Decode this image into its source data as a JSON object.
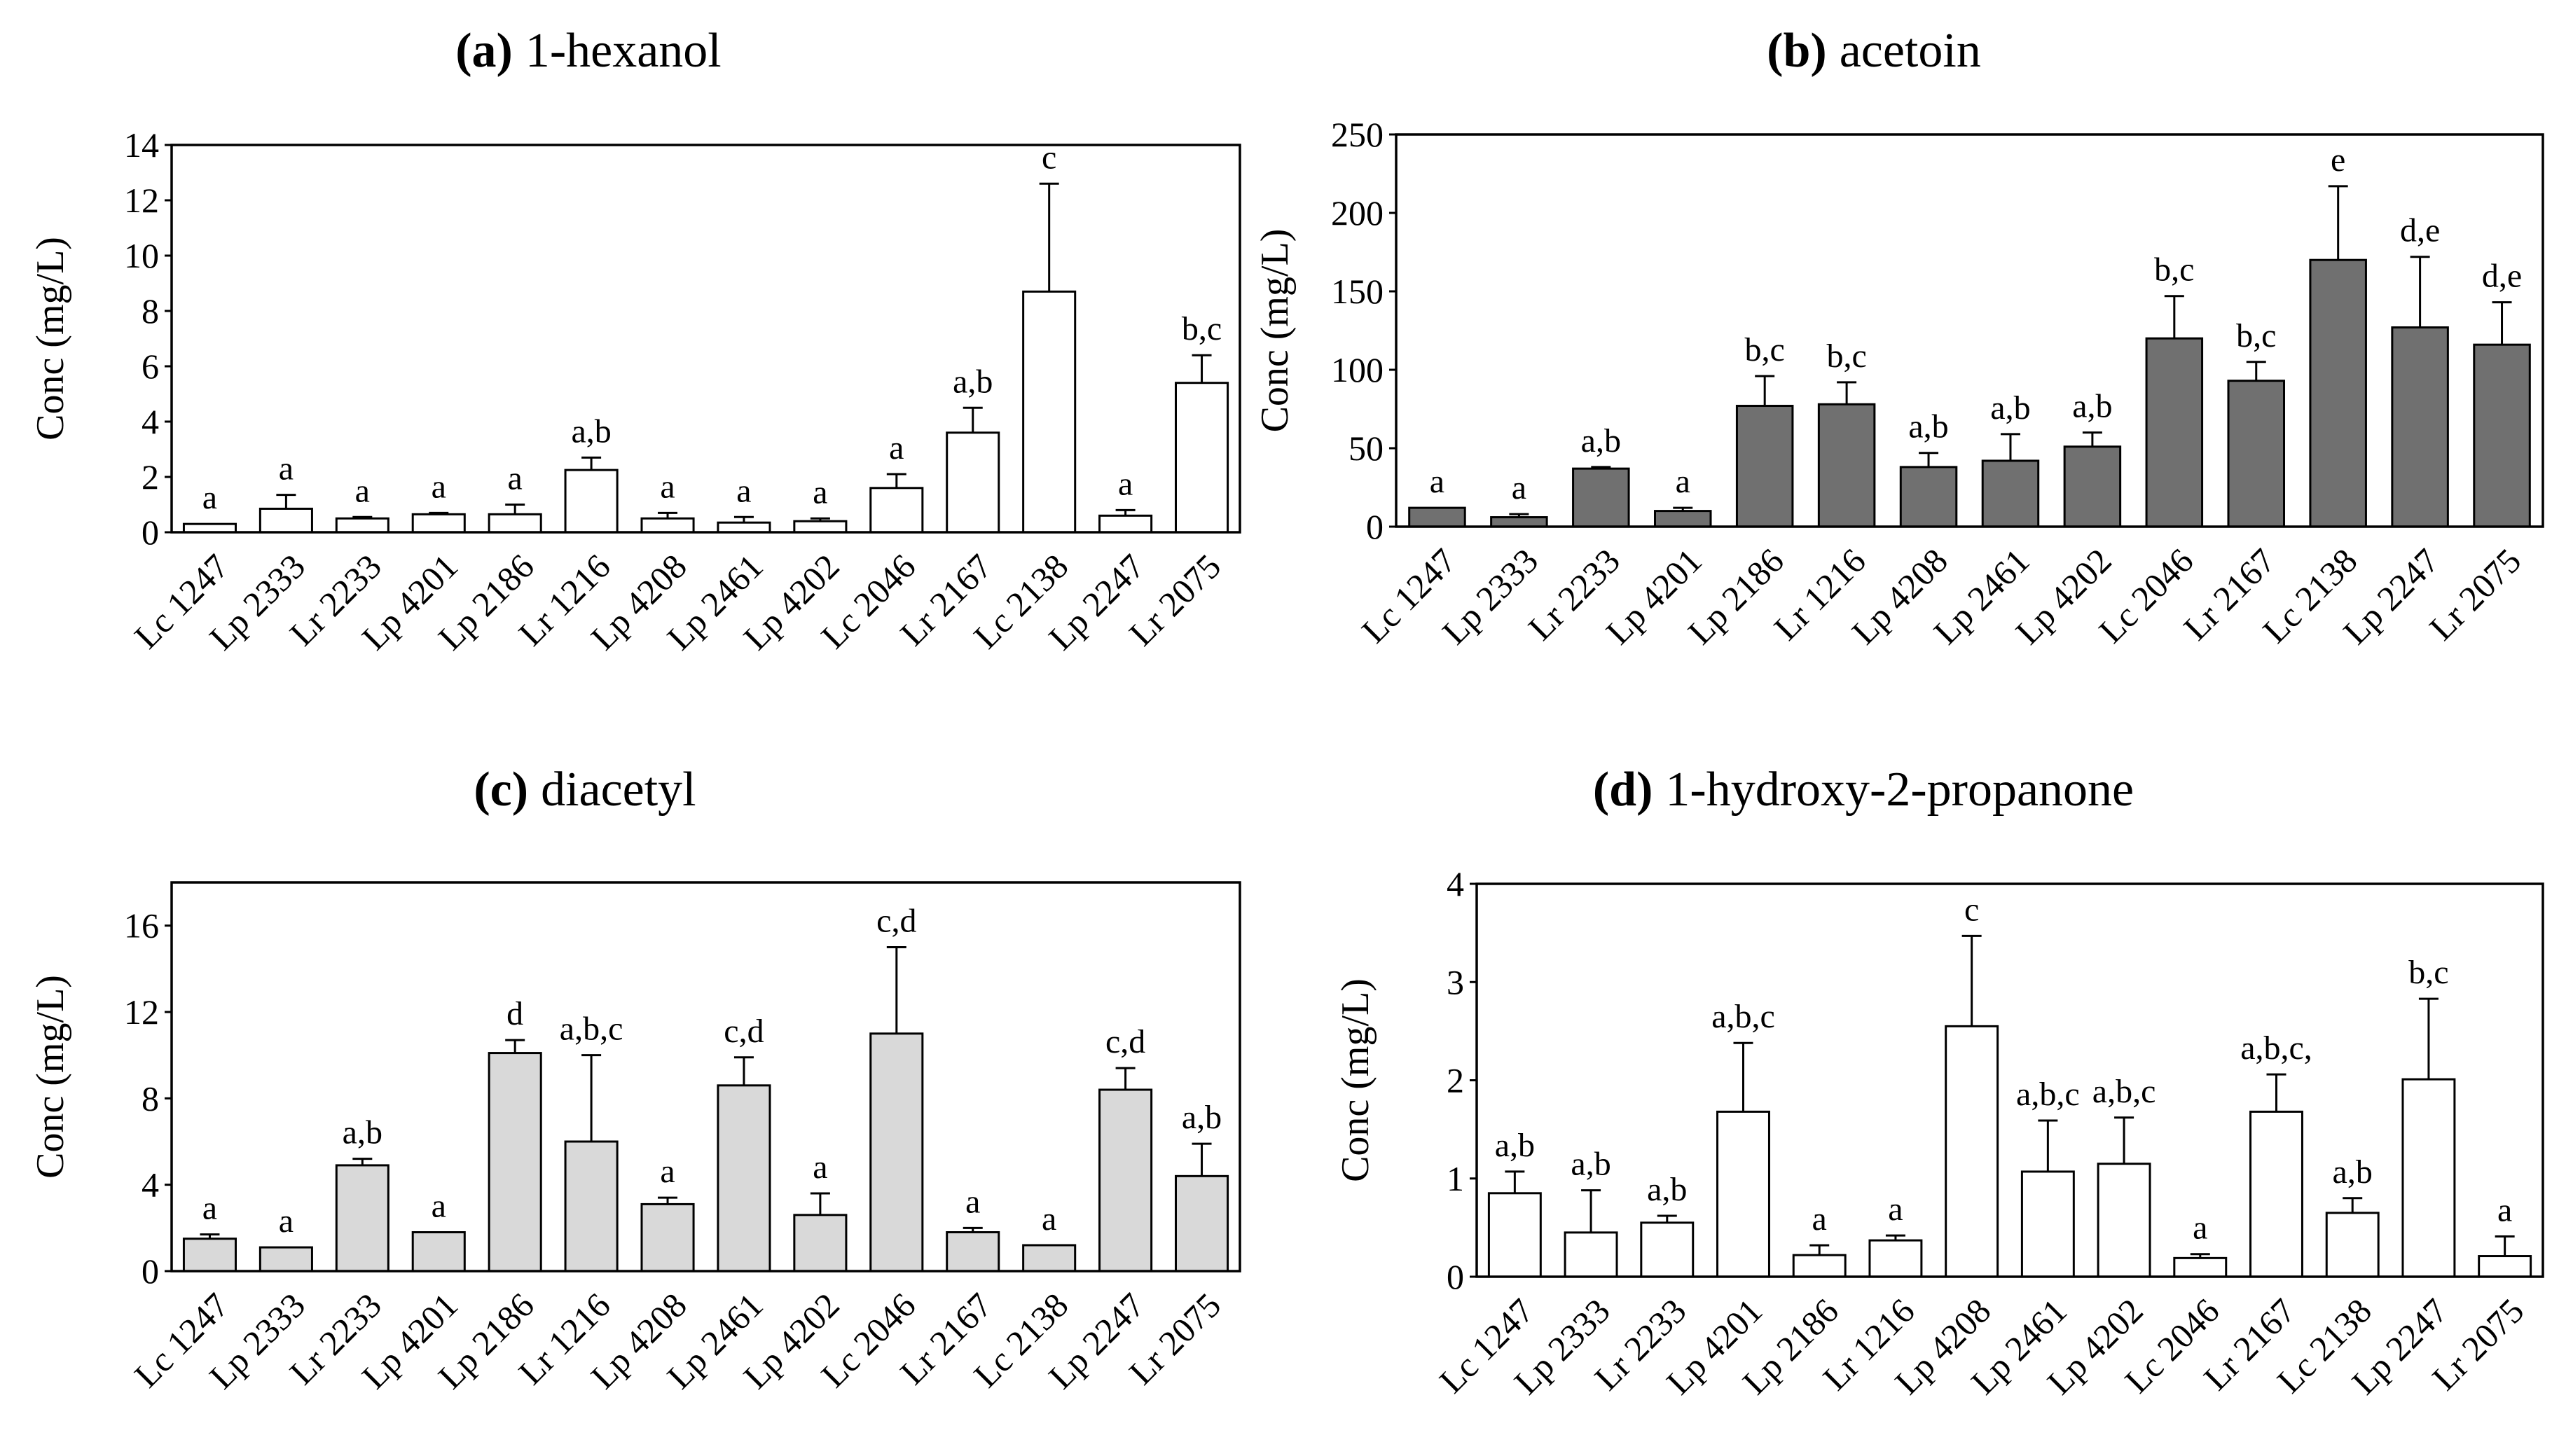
{
  "chart_data": [
    {
      "type": "bar",
      "panel_letter": "(a)",
      "title": "1-hexanol",
      "ylabel": "Conc (mg/L)",
      "xlabel": "",
      "ylim": [
        0,
        14
      ],
      "yticks": [
        0,
        2,
        4,
        6,
        8,
        10,
        12,
        14
      ],
      "bar_color": "#ffffff",
      "categories": [
        "Lc 1247",
        "Lp 2333",
        "Lr 2233",
        "Lp 4201",
        "Lp 2186",
        "Lr 1216",
        "Lp 4208",
        "Lp 2461",
        "Lp 4202",
        "Lc 2046",
        "Lr 2167",
        "Lc 2138",
        "Lp 2247",
        "Lr 2075"
      ],
      "values": [
        0.3,
        0.85,
        0.5,
        0.65,
        0.65,
        2.25,
        0.5,
        0.35,
        0.4,
        1.6,
        3.6,
        8.7,
        0.6,
        5.4
      ],
      "errors": [
        0.0,
        0.5,
        0.05,
        0.05,
        0.35,
        0.45,
        0.2,
        0.2,
        0.1,
        0.5,
        0.9,
        3.9,
        0.2,
        1.0
      ],
      "significance": [
        "a",
        "a",
        "a",
        "a",
        "a",
        "a,b",
        "a",
        "a",
        "a",
        "a",
        "a,b",
        "c",
        "a",
        "b,c"
      ]
    },
    {
      "type": "bar",
      "panel_letter": "(b)",
      "title": "acetoin",
      "ylabel": "Conc (mg/L)",
      "xlabel": "",
      "ylim": [
        0,
        250
      ],
      "yticks": [
        0,
        50,
        100,
        150,
        200,
        250
      ],
      "bar_color": "#707070",
      "categories": [
        "Lc 1247",
        "Lp 2333",
        "Lr 2233",
        "Lp 4201",
        "Lp 2186",
        "Lr 1216",
        "Lp 4208",
        "Lp 2461",
        "Lp 4202",
        "Lc 2046",
        "Lr 2167",
        "Lc 2138",
        "Lp 2247",
        "Lr 2075"
      ],
      "values": [
        12,
        6,
        37,
        10,
        77,
        78,
        38,
        42,
        51,
        120,
        93,
        170,
        127,
        116
      ],
      "errors": [
        0,
        2,
        1,
        2,
        19,
        14,
        9,
        17,
        9,
        27,
        12,
        47,
        45,
        27
      ],
      "significance": [
        "a",
        "a",
        "a,b",
        "a",
        "b,c",
        "b,c",
        "a,b",
        "a,b",
        "a,b",
        "b,c",
        "b,c",
        "e",
        "d,e",
        "d,e"
      ]
    },
    {
      "type": "bar",
      "panel_letter": "(c)",
      "title": "diacetyl",
      "ylabel": "Conc (mg/L)",
      "xlabel": "",
      "ylim": [
        0,
        18
      ],
      "yticks": [
        0,
        4,
        8,
        12,
        16
      ],
      "bar_color": "#d9d9d9",
      "categories": [
        "Lc 1247",
        "Lp 2333",
        "Lr 2233",
        "Lp 4201",
        "Lp 2186",
        "Lr 1216",
        "Lp 4208",
        "Lp 2461",
        "Lp 4202",
        "Lc 2046",
        "Lr 2167",
        "Lc 2138",
        "Lp 2247",
        "Lr 2075"
      ],
      "values": [
        1.5,
        1.1,
        4.9,
        1.8,
        10.1,
        6.0,
        3.1,
        8.6,
        2.6,
        11.0,
        1.8,
        1.2,
        8.4,
        4.4
      ],
      "errors": [
        0.2,
        0.0,
        0.3,
        0.0,
        0.6,
        4.0,
        0.3,
        1.3,
        1.0,
        4.0,
        0.2,
        0.0,
        1.0,
        1.5
      ],
      "significance": [
        "a",
        "a",
        "a,b",
        "a",
        "d",
        "a,b,c",
        "a",
        "c,d",
        "a",
        "c,d",
        "a",
        "a",
        "c,d",
        "a,b"
      ]
    },
    {
      "type": "bar",
      "panel_letter": "(d)",
      "title": "1-hydroxy-2-propanone",
      "ylabel": "Conc (mg/L)",
      "xlabel": "",
      "ylim": [
        0,
        4
      ],
      "yticks": [
        0,
        1,
        2,
        3,
        4
      ],
      "bar_color": "#ffffff",
      "categories": [
        "Lc 1247",
        "Lp 2333",
        "Lr 2233",
        "Lp 4201",
        "Lp 2186",
        "Lr 1216",
        "Lp 4208",
        "Lp 2461",
        "Lp 4202",
        "Lc 2046",
        "Lr 2167",
        "Lc 2138",
        "Lp 2247",
        "Lr 2075"
      ],
      "values": [
        0.85,
        0.45,
        0.55,
        1.68,
        0.22,
        0.37,
        2.55,
        1.07,
        1.15,
        0.19,
        1.68,
        0.65,
        2.01,
        0.21
      ],
      "errors": [
        0.22,
        0.43,
        0.07,
        0.7,
        0.1,
        0.05,
        0.92,
        0.52,
        0.47,
        0.04,
        0.38,
        0.15,
        0.82,
        0.2
      ],
      "significance": [
        "a,b",
        "a,b",
        "a,b",
        "a,b,c",
        "a",
        "a",
        "c",
        "a,b,c",
        "a,b,c",
        "a",
        "a,b,c,",
        "a,b",
        "b,c",
        "a"
      ]
    }
  ]
}
